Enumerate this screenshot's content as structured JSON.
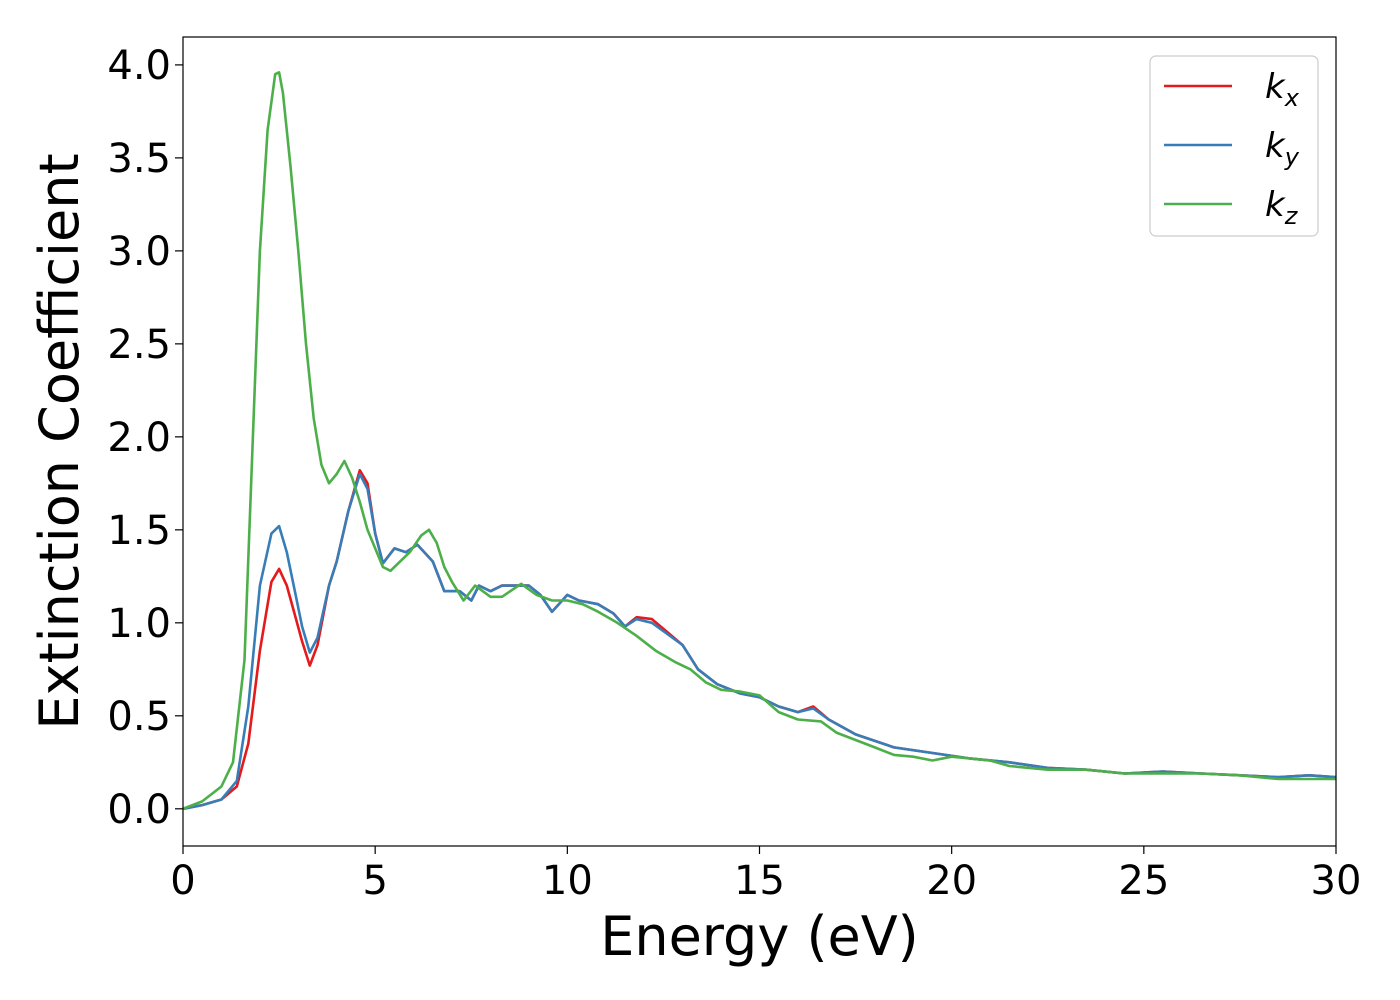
{
  "chart_data": {
    "type": "line",
    "xlabel": "Energy (eV)",
    "ylabel": "Extinction Coefficient",
    "xlim": [
      0,
      30
    ],
    "ylim": [
      -0.2,
      4.15
    ],
    "xticks": [
      0,
      5,
      10,
      15,
      20,
      25,
      30
    ],
    "yticks": [
      0.0,
      0.5,
      1.0,
      1.5,
      2.0,
      2.5,
      3.0,
      3.5,
      4.0
    ],
    "xtick_labels": [
      "0",
      "5",
      "10",
      "15",
      "20",
      "25",
      "30"
    ],
    "ytick_labels": [
      "0.0",
      "0.5",
      "1.0",
      "1.5",
      "2.0",
      "2.5",
      "3.0",
      "3.5",
      "4.0"
    ],
    "grid": false,
    "legend_position": "top-right",
    "series": [
      {
        "name": "k_x",
        "base": "k",
        "sub": "x",
        "color": "#e41a1c",
        "points": [
          [
            0,
            0
          ],
          [
            0.5,
            0.02
          ],
          [
            1.0,
            0.05
          ],
          [
            1.4,
            0.12
          ],
          [
            1.7,
            0.35
          ],
          [
            2.0,
            0.85
          ],
          [
            2.3,
            1.22
          ],
          [
            2.5,
            1.29
          ],
          [
            2.7,
            1.2
          ],
          [
            2.9,
            1.05
          ],
          [
            3.1,
            0.9
          ],
          [
            3.3,
            0.77
          ],
          [
            3.5,
            0.88
          ],
          [
            3.8,
            1.2
          ],
          [
            4.0,
            1.33
          ],
          [
            4.3,
            1.6
          ],
          [
            4.6,
            1.82
          ],
          [
            4.8,
            1.75
          ],
          [
            5.0,
            1.48
          ],
          [
            5.2,
            1.32
          ],
          [
            5.5,
            1.4
          ],
          [
            5.8,
            1.38
          ],
          [
            6.1,
            1.42
          ],
          [
            6.5,
            1.33
          ],
          [
            6.8,
            1.17
          ],
          [
            7.2,
            1.17
          ],
          [
            7.5,
            1.12
          ],
          [
            7.7,
            1.2
          ],
          [
            8.0,
            1.17
          ],
          [
            8.3,
            1.2
          ],
          [
            8.6,
            1.2
          ],
          [
            9.0,
            1.2
          ],
          [
            9.3,
            1.15
          ],
          [
            9.6,
            1.06
          ],
          [
            10.0,
            1.15
          ],
          [
            10.3,
            1.12
          ],
          [
            10.8,
            1.1
          ],
          [
            11.2,
            1.05
          ],
          [
            11.5,
            0.98
          ],
          [
            11.8,
            1.03
          ],
          [
            12.2,
            1.02
          ],
          [
            12.6,
            0.95
          ],
          [
            13.0,
            0.88
          ],
          [
            13.4,
            0.75
          ],
          [
            13.9,
            0.67
          ],
          [
            14.5,
            0.62
          ],
          [
            15.0,
            0.6
          ],
          [
            15.5,
            0.55
          ],
          [
            16.0,
            0.52
          ],
          [
            16.4,
            0.55
          ],
          [
            16.8,
            0.48
          ],
          [
            17.5,
            0.4
          ],
          [
            18.5,
            0.33
          ],
          [
            19.5,
            0.3
          ],
          [
            20.5,
            0.27
          ],
          [
            21.5,
            0.25
          ],
          [
            22.5,
            0.22
          ],
          [
            23.5,
            0.21
          ],
          [
            24.5,
            0.19
          ],
          [
            25.5,
            0.2
          ],
          [
            26.5,
            0.19
          ],
          [
            27.5,
            0.18
          ],
          [
            28.5,
            0.17
          ],
          [
            29.3,
            0.18
          ],
          [
            30,
            0.17
          ]
        ]
      },
      {
        "name": "k_y",
        "base": "k",
        "sub": "y",
        "color": "#377eb8",
        "points": [
          [
            0,
            0
          ],
          [
            0.5,
            0.02
          ],
          [
            1.0,
            0.05
          ],
          [
            1.4,
            0.15
          ],
          [
            1.7,
            0.55
          ],
          [
            2.0,
            1.2
          ],
          [
            2.3,
            1.48
          ],
          [
            2.5,
            1.52
          ],
          [
            2.7,
            1.38
          ],
          [
            2.9,
            1.18
          ],
          [
            3.1,
            0.98
          ],
          [
            3.3,
            0.84
          ],
          [
            3.5,
            0.92
          ],
          [
            3.8,
            1.2
          ],
          [
            4.0,
            1.33
          ],
          [
            4.3,
            1.6
          ],
          [
            4.6,
            1.8
          ],
          [
            4.8,
            1.72
          ],
          [
            5.0,
            1.48
          ],
          [
            5.2,
            1.32
          ],
          [
            5.5,
            1.4
          ],
          [
            5.8,
            1.38
          ],
          [
            6.1,
            1.42
          ],
          [
            6.5,
            1.33
          ],
          [
            6.8,
            1.17
          ],
          [
            7.2,
            1.17
          ],
          [
            7.5,
            1.12
          ],
          [
            7.7,
            1.2
          ],
          [
            8.0,
            1.17
          ],
          [
            8.3,
            1.2
          ],
          [
            8.6,
            1.2
          ],
          [
            9.0,
            1.2
          ],
          [
            9.3,
            1.15
          ],
          [
            9.6,
            1.06
          ],
          [
            10.0,
            1.15
          ],
          [
            10.3,
            1.12
          ],
          [
            10.8,
            1.1
          ],
          [
            11.2,
            1.05
          ],
          [
            11.5,
            0.98
          ],
          [
            11.8,
            1.02
          ],
          [
            12.2,
            1.0
          ],
          [
            12.6,
            0.94
          ],
          [
            13.0,
            0.88
          ],
          [
            13.4,
            0.75
          ],
          [
            13.9,
            0.67
          ],
          [
            14.5,
            0.62
          ],
          [
            15.0,
            0.6
          ],
          [
            15.5,
            0.55
          ],
          [
            16.0,
            0.52
          ],
          [
            16.4,
            0.54
          ],
          [
            16.8,
            0.48
          ],
          [
            17.5,
            0.4
          ],
          [
            18.5,
            0.33
          ],
          [
            19.5,
            0.3
          ],
          [
            20.5,
            0.27
          ],
          [
            21.5,
            0.25
          ],
          [
            22.5,
            0.22
          ],
          [
            23.5,
            0.21
          ],
          [
            24.5,
            0.19
          ],
          [
            25.5,
            0.2
          ],
          [
            26.5,
            0.19
          ],
          [
            27.5,
            0.18
          ],
          [
            28.5,
            0.17
          ],
          [
            29.3,
            0.18
          ],
          [
            30,
            0.17
          ]
        ]
      },
      {
        "name": "k_z",
        "base": "k",
        "sub": "z",
        "color": "#4daf4a",
        "points": [
          [
            0,
            0
          ],
          [
            0.5,
            0.04
          ],
          [
            1.0,
            0.12
          ],
          [
            1.3,
            0.25
          ],
          [
            1.6,
            0.8
          ],
          [
            1.8,
            1.9
          ],
          [
            2.0,
            3.0
          ],
          [
            2.2,
            3.65
          ],
          [
            2.4,
            3.95
          ],
          [
            2.5,
            3.96
          ],
          [
            2.6,
            3.85
          ],
          [
            2.8,
            3.45
          ],
          [
            3.0,
            3.0
          ],
          [
            3.2,
            2.5
          ],
          [
            3.4,
            2.1
          ],
          [
            3.6,
            1.85
          ],
          [
            3.8,
            1.75
          ],
          [
            4.0,
            1.8
          ],
          [
            4.2,
            1.87
          ],
          [
            4.4,
            1.78
          ],
          [
            4.6,
            1.65
          ],
          [
            4.8,
            1.5
          ],
          [
            5.0,
            1.4
          ],
          [
            5.2,
            1.3
          ],
          [
            5.4,
            1.28
          ],
          [
            5.6,
            1.32
          ],
          [
            5.9,
            1.38
          ],
          [
            6.2,
            1.47
          ],
          [
            6.4,
            1.5
          ],
          [
            6.6,
            1.43
          ],
          [
            6.8,
            1.3
          ],
          [
            7.0,
            1.22
          ],
          [
            7.3,
            1.12
          ],
          [
            7.6,
            1.2
          ],
          [
            8.0,
            1.14
          ],
          [
            8.3,
            1.14
          ],
          [
            8.8,
            1.21
          ],
          [
            9.2,
            1.15
          ],
          [
            9.6,
            1.12
          ],
          [
            10.0,
            1.12
          ],
          [
            10.4,
            1.1
          ],
          [
            10.8,
            1.06
          ],
          [
            11.3,
            1.0
          ],
          [
            11.8,
            0.93
          ],
          [
            12.3,
            0.85
          ],
          [
            12.8,
            0.79
          ],
          [
            13.2,
            0.75
          ],
          [
            13.6,
            0.68
          ],
          [
            14.0,
            0.64
          ],
          [
            14.5,
            0.63
          ],
          [
            15.0,
            0.61
          ],
          [
            15.5,
            0.52
          ],
          [
            16.0,
            0.48
          ],
          [
            16.6,
            0.47
          ],
          [
            17.0,
            0.41
          ],
          [
            17.5,
            0.37
          ],
          [
            18.0,
            0.33
          ],
          [
            18.5,
            0.29
          ],
          [
            19.0,
            0.28
          ],
          [
            19.5,
            0.26
          ],
          [
            20.0,
            0.28
          ],
          [
            20.5,
            0.27
          ],
          [
            21.0,
            0.26
          ],
          [
            21.5,
            0.23
          ],
          [
            22.5,
            0.21
          ],
          [
            23.5,
            0.21
          ],
          [
            24.5,
            0.19
          ],
          [
            25.5,
            0.19
          ],
          [
            26.5,
            0.19
          ],
          [
            27.5,
            0.18
          ],
          [
            28.5,
            0.16
          ],
          [
            29.3,
            0.16
          ],
          [
            30,
            0.16
          ]
        ]
      }
    ]
  }
}
